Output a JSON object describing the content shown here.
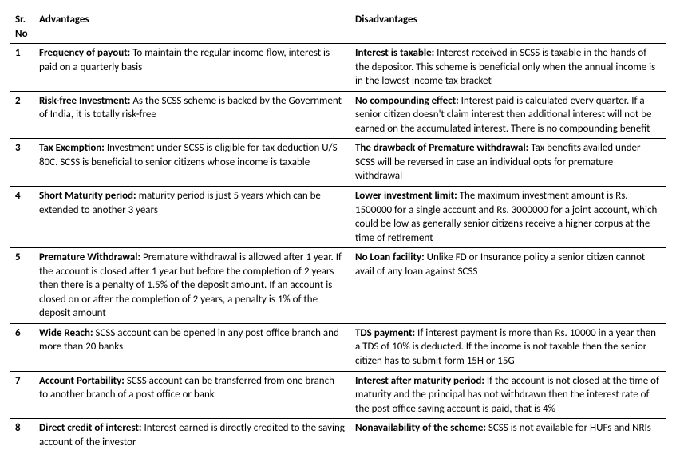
{
  "table": {
    "columns": {
      "sr": "Sr. No",
      "adv": "Advantages",
      "dis": "Disadvantages"
    },
    "rows": [
      {
        "sr": "1",
        "adv_lead": "Frequency of payout: ",
        "adv_body": "To maintain the regular income flow, interest is paid on a quarterly basis",
        "dis_lead": "Interest is taxable: ",
        "dis_body": "Interest received in SCSS is taxable in the hands of the depositor. This scheme is beneficial only when the annual income is in the lowest income tax bracket"
      },
      {
        "sr": "2",
        "adv_lead": "Risk-free Investment: ",
        "adv_body": "As the SCSS scheme is backed by the Government of India, it is totally risk-free",
        "dis_lead": "No compounding effect: ",
        "dis_body": "Interest paid is calculated every quarter. If a senior citizen doesn't claim interest then additional interest will not be earned on the accumulated interest. There is no compounding benefit"
      },
      {
        "sr": "3",
        "adv_lead": "Tax Exemption: ",
        "adv_body": "Investment under SCSS is eligible for tax deduction U/S 80C. SCSS is beneficial to senior citizens whose income is taxable",
        "dis_lead": "The drawback of Premature withdrawal: ",
        "dis_body": "Tax benefits availed under SCSS will be reversed in case an individual opts for premature withdrawal"
      },
      {
        "sr": "4",
        "adv_lead": "Short Maturity period: ",
        "adv_body": "maturity period is just 5 years which can be extended to another 3 years",
        "dis_lead": "Lower investment limit: ",
        "dis_body": "The maximum investment amount is Rs. 1500000 for a single account and Rs. 3000000 for a joint account, which could be low as generally senior citizens receive a higher corpus at the time of retirement"
      },
      {
        "sr": "5",
        "adv_lead": "Premature Withdrawal: ",
        "adv_body": "Premature withdrawal is allowed after 1 year. If the account is closed after 1 year but before the completion of 2 years then there is a penalty of 1.5% of the deposit amount. If an account is closed on or after the completion of 2 years, a penalty is 1% of the deposit amount",
        "dis_lead": "No Loan facility: ",
        "dis_body": "Unlike FD or Insurance policy a senior citizen cannot avail of any loan against SCSS"
      },
      {
        "sr": "6",
        "adv_lead": "Wide Reach: ",
        "adv_body": "SCSS account can be opened in any post office branch and more than 20 banks",
        "dis_lead": "TDS payment: ",
        "dis_body": "If interest payment is more than Rs. 10000 in a year then a TDS of 10% is deducted. If the income is not taxable then the senior citizen has to submit form 15H or 15G"
      },
      {
        "sr": "7",
        "adv_lead": "Account Portability: ",
        "adv_body": "SCSS account can be transferred from one branch to another branch of a post office or bank",
        "dis_lead": "Interest after maturity period: ",
        "dis_body": "If the account is not closed at the time of maturity and the principal has not withdrawn then the interest rate of the post office saving account is paid, that is 4%"
      },
      {
        "sr": "8",
        "adv_lead": "Direct credit of interest: ",
        "adv_body": "Interest earned is directly credited to the saving account of the investor",
        "dis_lead": "Nonavailability of the scheme: ",
        "dis_body": "SCSS is not available for HUFs and NRIs"
      }
    ]
  }
}
